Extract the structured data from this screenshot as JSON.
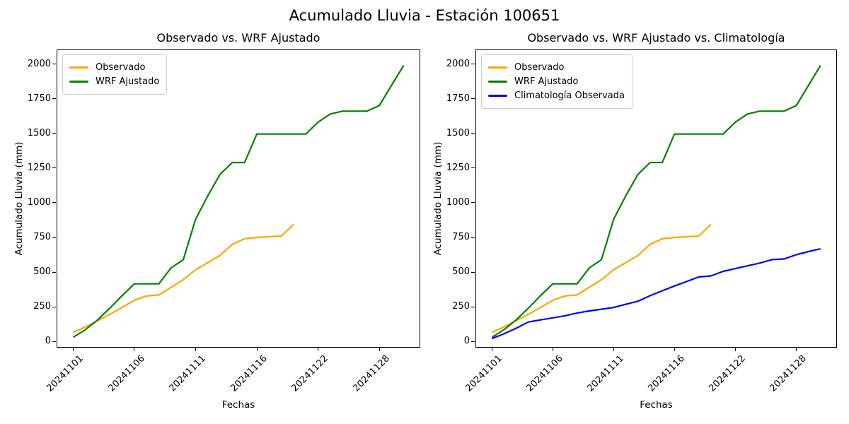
{
  "figure": {
    "suptitle": "Acumulado Lluvia - Estación 100651",
    "background": "#ffffff"
  },
  "colors": {
    "observado": "#FFA500",
    "wrf_ajustado": "#008000",
    "climatologia": "#0000FF"
  },
  "chart_data": [
    {
      "type": "line",
      "title": "Observado vs. WRF Ajustado",
      "xlabel": "Fechas",
      "ylabel": "Acumulado Lluvia (mm)",
      "x_dates": [
        "20241101",
        "20241102",
        "20241103",
        "20241104",
        "20241105",
        "20241106",
        "20241107",
        "20241108",
        "20241109",
        "20241110",
        "20241111",
        "20241112",
        "20241113",
        "20241114",
        "20241115",
        "20241116",
        "20241117",
        "20241118",
        "20241119",
        "20241121",
        "20241122",
        "20241123",
        "20241124",
        "20241125",
        "20241127",
        "20241128",
        "20241129",
        "20241130"
      ],
      "xticks": [
        "20241101",
        "20241106",
        "20241111",
        "20241116",
        "20241122",
        "20241128"
      ],
      "xtick_indices": [
        0,
        5,
        10,
        15,
        20,
        25
      ],
      "yticks": [
        0,
        250,
        500,
        750,
        1000,
        1250,
        1500,
        1750,
        2000
      ],
      "xlim": [
        -1.35,
        28.35
      ],
      "ylim": [
        -45,
        2105
      ],
      "grid": false,
      "legend_position": "upper left",
      "series": [
        {
          "name": "Observado",
          "color": "#FFA500",
          "values": [
            65,
            105,
            150,
            195,
            245,
            297,
            328,
            335,
            390,
            445,
            517,
            568,
            620,
            700,
            740,
            750,
            755,
            760,
            843
          ]
        },
        {
          "name": "WRF Ajustado",
          "color": "#008000",
          "values": [
            30,
            85,
            155,
            240,
            330,
            415,
            415,
            415,
            530,
            590,
            880,
            1050,
            1205,
            1290,
            1290,
            1495,
            1495,
            1495,
            1495,
            1495,
            1580,
            1640,
            1660,
            1660,
            1660,
            1700,
            1845,
            1990
          ]
        }
      ]
    },
    {
      "type": "line",
      "title": "Observado vs. WRF Ajustado vs. Climatología",
      "xlabel": "Fechas",
      "ylabel": "Acumulado Lluvia (mm)",
      "x_dates": [
        "20241101",
        "20241102",
        "20241103",
        "20241104",
        "20241105",
        "20241106",
        "20241107",
        "20241108",
        "20241109",
        "20241110",
        "20241111",
        "20241112",
        "20241113",
        "20241114",
        "20241115",
        "20241116",
        "20241117",
        "20241118",
        "20241119",
        "20241121",
        "20241122",
        "20241123",
        "20241124",
        "20241125",
        "20241127",
        "20241128",
        "20241129",
        "20241130"
      ],
      "xticks": [
        "20241101",
        "20241106",
        "20241111",
        "20241116",
        "20241122",
        "20241128"
      ],
      "xtick_indices": [
        0,
        5,
        10,
        15,
        20,
        25
      ],
      "yticks": [
        0,
        250,
        500,
        750,
        1000,
        1250,
        1500,
        1750,
        2000
      ],
      "xlim": [
        -1.35,
        28.35
      ],
      "ylim": [
        -45,
        2105
      ],
      "grid": false,
      "legend_position": "upper left",
      "series": [
        {
          "name": "Observado",
          "color": "#FFA500",
          "values": [
            65,
            105,
            150,
            195,
            245,
            297,
            328,
            335,
            390,
            445,
            517,
            568,
            620,
            700,
            740,
            750,
            755,
            760,
            843
          ]
        },
        {
          "name": "WRF Ajustado",
          "color": "#008000",
          "values": [
            30,
            85,
            155,
            240,
            330,
            415,
            415,
            415,
            530,
            590,
            880,
            1050,
            1205,
            1290,
            1290,
            1495,
            1495,
            1495,
            1495,
            1495,
            1580,
            1640,
            1660,
            1660,
            1660,
            1700,
            1845,
            1990
          ]
        },
        {
          "name": "Climatología Observada",
          "color": "#0000FF",
          "values": [
            20,
            55,
            95,
            140,
            155,
            170,
            185,
            205,
            220,
            232,
            245,
            268,
            290,
            330,
            365,
            400,
            432,
            465,
            472,
            505,
            525,
            545,
            565,
            590,
            595,
            625,
            648,
            668
          ]
        }
      ]
    }
  ]
}
